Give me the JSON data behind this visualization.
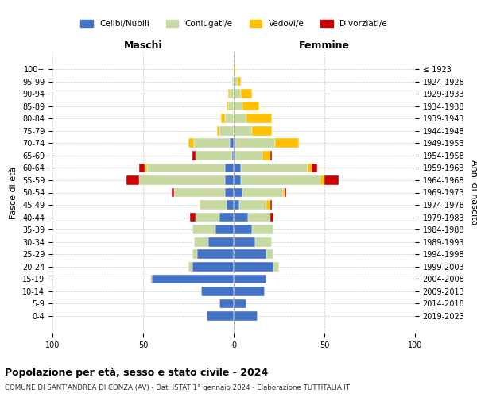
{
  "age_groups": [
    "0-4",
    "5-9",
    "10-14",
    "15-19",
    "20-24",
    "25-29",
    "30-34",
    "35-39",
    "40-44",
    "45-49",
    "50-54",
    "55-59",
    "60-64",
    "65-69",
    "70-74",
    "75-79",
    "80-84",
    "85-89",
    "90-94",
    "95-99",
    "100+"
  ],
  "birth_years": [
    "2019-2023",
    "2014-2018",
    "2009-2013",
    "2004-2008",
    "1999-2003",
    "1994-1998",
    "1989-1993",
    "1984-1988",
    "1979-1983",
    "1974-1978",
    "1969-1973",
    "1964-1968",
    "1959-1963",
    "1954-1958",
    "1949-1953",
    "1944-1948",
    "1939-1943",
    "1934-1938",
    "1929-1933",
    "1924-1928",
    "≤ 1923"
  ],
  "colors": {
    "celibi": "#4472c4",
    "coniugati": "#c5d9a0",
    "vedovi": "#ffc000",
    "divorziati": "#cc0000"
  },
  "males": {
    "celibi": [
      15,
      8,
      18,
      45,
      23,
      20,
      14,
      10,
      8,
      4,
      5,
      5,
      5,
      1,
      2,
      0,
      0,
      0,
      0,
      0,
      0
    ],
    "coniugati": [
      0,
      0,
      0,
      1,
      2,
      3,
      8,
      13,
      13,
      15,
      28,
      47,
      43,
      20,
      20,
      8,
      5,
      3,
      2,
      1,
      0
    ],
    "vedovi": [
      0,
      0,
      0,
      0,
      0,
      0,
      0,
      0,
      0,
      0,
      0,
      0,
      1,
      0,
      3,
      1,
      2,
      1,
      1,
      0,
      0
    ],
    "divorziati": [
      0,
      0,
      0,
      0,
      0,
      0,
      0,
      0,
      3,
      0,
      1,
      7,
      3,
      2,
      0,
      0,
      0,
      0,
      0,
      0,
      0
    ]
  },
  "females": {
    "nubili": [
      13,
      7,
      17,
      18,
      22,
      18,
      12,
      10,
      8,
      3,
      5,
      4,
      4,
      1,
      1,
      0,
      0,
      0,
      0,
      0,
      0
    ],
    "coniugate": [
      0,
      0,
      0,
      0,
      3,
      4,
      9,
      12,
      12,
      15,
      22,
      44,
      37,
      15,
      22,
      10,
      7,
      5,
      4,
      2,
      0
    ],
    "vedove": [
      0,
      0,
      0,
      0,
      0,
      0,
      0,
      0,
      0,
      2,
      1,
      2,
      2,
      4,
      13,
      11,
      14,
      9,
      6,
      2,
      1
    ],
    "divorziate": [
      0,
      0,
      0,
      0,
      0,
      0,
      0,
      0,
      2,
      1,
      1,
      8,
      3,
      1,
      0,
      0,
      0,
      0,
      0,
      0,
      0
    ]
  },
  "xlim": 100,
  "title_main": "Popolazione per età, sesso e stato civile - 2024",
  "title_sub": "COMUNE DI SANT'ANDREA DI CONZA (AV) - Dati ISTAT 1° gennaio 2024 - Elaborazione TUTTITALIA.IT",
  "ylabel_left": "Fasce di età",
  "ylabel_right": "Anni di nascita",
  "xlabel_left": "Maschi",
  "xlabel_right": "Femmine",
  "legend_labels": [
    "Celibi/Nubili",
    "Coniugati/e",
    "Vedovi/e",
    "Divorziati/e"
  ],
  "bg_color": "#ffffff",
  "grid_color": "#cccccc"
}
